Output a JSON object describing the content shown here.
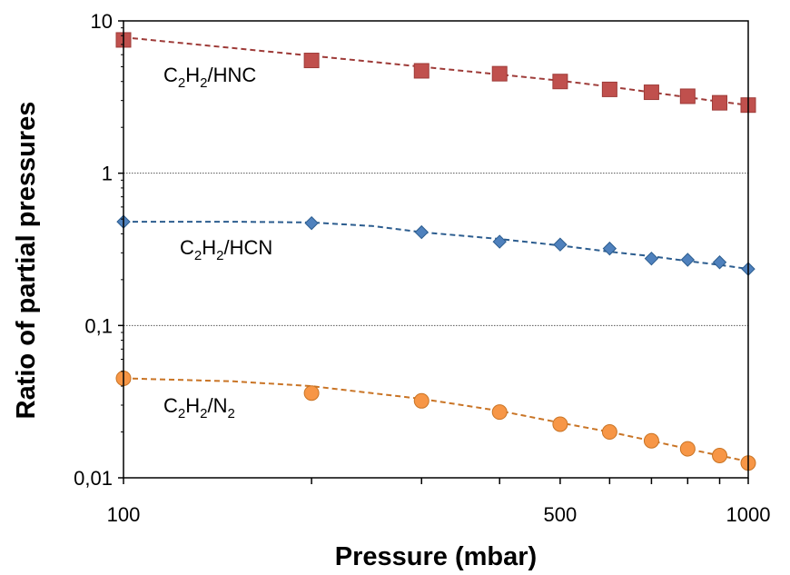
{
  "chart_data": {
    "type": "scatter",
    "xlabel": "Pressure (mbar)",
    "ylabel": "Ratio of partial pressures",
    "x_scale": "log",
    "y_scale": "log",
    "xlim": [
      100,
      1000
    ],
    "ylim": [
      0.01,
      10
    ],
    "x_ticks": [
      {
        "value": 100,
        "label": "100"
      },
      {
        "value": 500,
        "label": "500"
      },
      {
        "value": 1000,
        "label": "1000"
      }
    ],
    "y_ticks": [
      {
        "value": 0.01,
        "label": "0,01"
      },
      {
        "value": 0.1,
        "label": "0,1"
      },
      {
        "value": 1,
        "label": "1"
      },
      {
        "value": 10,
        "label": "10"
      }
    ],
    "grid": "horizontal dotted at 0.1 and 1",
    "x": [
      100,
      200,
      300,
      400,
      500,
      600,
      700,
      800,
      900,
      1000
    ],
    "series": [
      {
        "name": "C2H2/HNC",
        "label_main": "C",
        "label_sub1": "2",
        "label_mid": "H",
        "label_sub2": "2",
        "label_tail": "/HNC",
        "marker": "square",
        "color": "#c0504d",
        "stroke": "#9e3b38",
        "values": [
          7.5,
          5.5,
          4.7,
          4.5,
          4.0,
          3.55,
          3.4,
          3.2,
          2.9,
          2.8
        ]
      },
      {
        "name": "C2H2/HCN",
        "label_main": "C",
        "label_sub1": "2",
        "label_mid": "H",
        "label_sub2": "2",
        "label_tail": "/HCN",
        "marker": "diamond",
        "color": "#4f81bd",
        "stroke": "#2c5d8f",
        "values": [
          0.48,
          0.47,
          0.41,
          0.355,
          0.34,
          0.32,
          0.275,
          0.27,
          0.26,
          0.235
        ]
      },
      {
        "name": "C2H2/N2",
        "label_main": "C",
        "label_sub1": "2",
        "label_mid": "H",
        "label_sub2": "2",
        "label_tail": "/N",
        "label_sub3": "2",
        "marker": "circle",
        "color": "#f79646",
        "stroke": "#c97425",
        "values": [
          0.045,
          0.036,
          0.032,
          0.027,
          0.0225,
          0.02,
          0.0175,
          0.0155,
          0.014,
          0.0125
        ]
      }
    ],
    "trendlines": [
      {
        "series": "C2H2/HNC",
        "x": [
          100,
          200,
          300,
          400,
          500,
          600,
          700,
          800,
          900,
          1000
        ],
        "y": [
          7.8,
          5.9,
          5.0,
          4.45,
          4.05,
          3.7,
          3.4,
          3.15,
          2.95,
          2.8
        ]
      },
      {
        "series": "C2H2/HCN",
        "x": [
          100,
          150,
          200,
          250,
          300,
          400,
          500,
          600,
          700,
          800,
          900,
          1000
        ],
        "y": [
          0.48,
          0.48,
          0.475,
          0.45,
          0.41,
          0.37,
          0.335,
          0.305,
          0.285,
          0.265,
          0.25,
          0.235
        ]
      },
      {
        "series": "C2H2/N2",
        "x": [
          100,
          150,
          200,
          300,
          400,
          500,
          600,
          700,
          800,
          900,
          1000
        ],
        "y": [
          0.045,
          0.043,
          0.04,
          0.033,
          0.0275,
          0.023,
          0.02,
          0.0175,
          0.0155,
          0.014,
          0.0128
        ]
      }
    ]
  }
}
